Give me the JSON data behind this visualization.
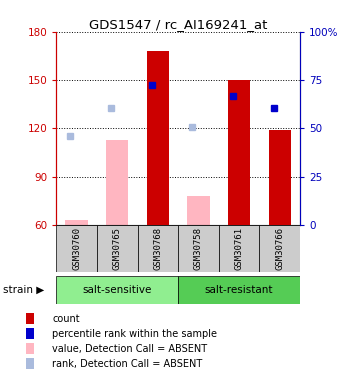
{
  "title": "GDS1547 / rc_AI169241_at",
  "samples": [
    "GSM30760",
    "GSM30765",
    "GSM30768",
    "GSM30758",
    "GSM30761",
    "GSM30766"
  ],
  "groups": [
    {
      "name": "salt-sensitive",
      "indices": [
        0,
        1,
        2
      ],
      "color": "#90EE90"
    },
    {
      "name": "salt-resistant",
      "indices": [
        3,
        4,
        5
      ],
      "color": "#55CC55"
    }
  ],
  "ylim_left": [
    60,
    180
  ],
  "ylim_right": [
    0,
    100
  ],
  "yticks_left": [
    60,
    90,
    120,
    150,
    180
  ],
  "yticks_right": [
    0,
    25,
    50,
    75,
    100
  ],
  "ylabel_left_color": "#CC0000",
  "ylabel_right_color": "#0000BB",
  "bar_values": [
    null,
    null,
    168,
    null,
    150,
    119
  ],
  "bar_color": "#CC0000",
  "absent_value": [
    63,
    113,
    null,
    78,
    null,
    null
  ],
  "absent_value_color": "#FFB6C1",
  "rank_absent": [
    115,
    133,
    null,
    121,
    null,
    null
  ],
  "rank_absent_color": "#AABBDD",
  "percentile_rank": [
    null,
    null,
    147,
    null,
    140,
    133
  ],
  "percentile_rank_color": "#0000CC",
  "bar_bottom": 60,
  "legend_items": [
    {
      "label": "count",
      "color": "#CC0000"
    },
    {
      "label": "percentile rank within the sample",
      "color": "#0000CC"
    },
    {
      "label": "value, Detection Call = ABSENT",
      "color": "#FFB6C1"
    },
    {
      "label": "rank, Detection Call = ABSENT",
      "color": "#AABBDD"
    }
  ]
}
